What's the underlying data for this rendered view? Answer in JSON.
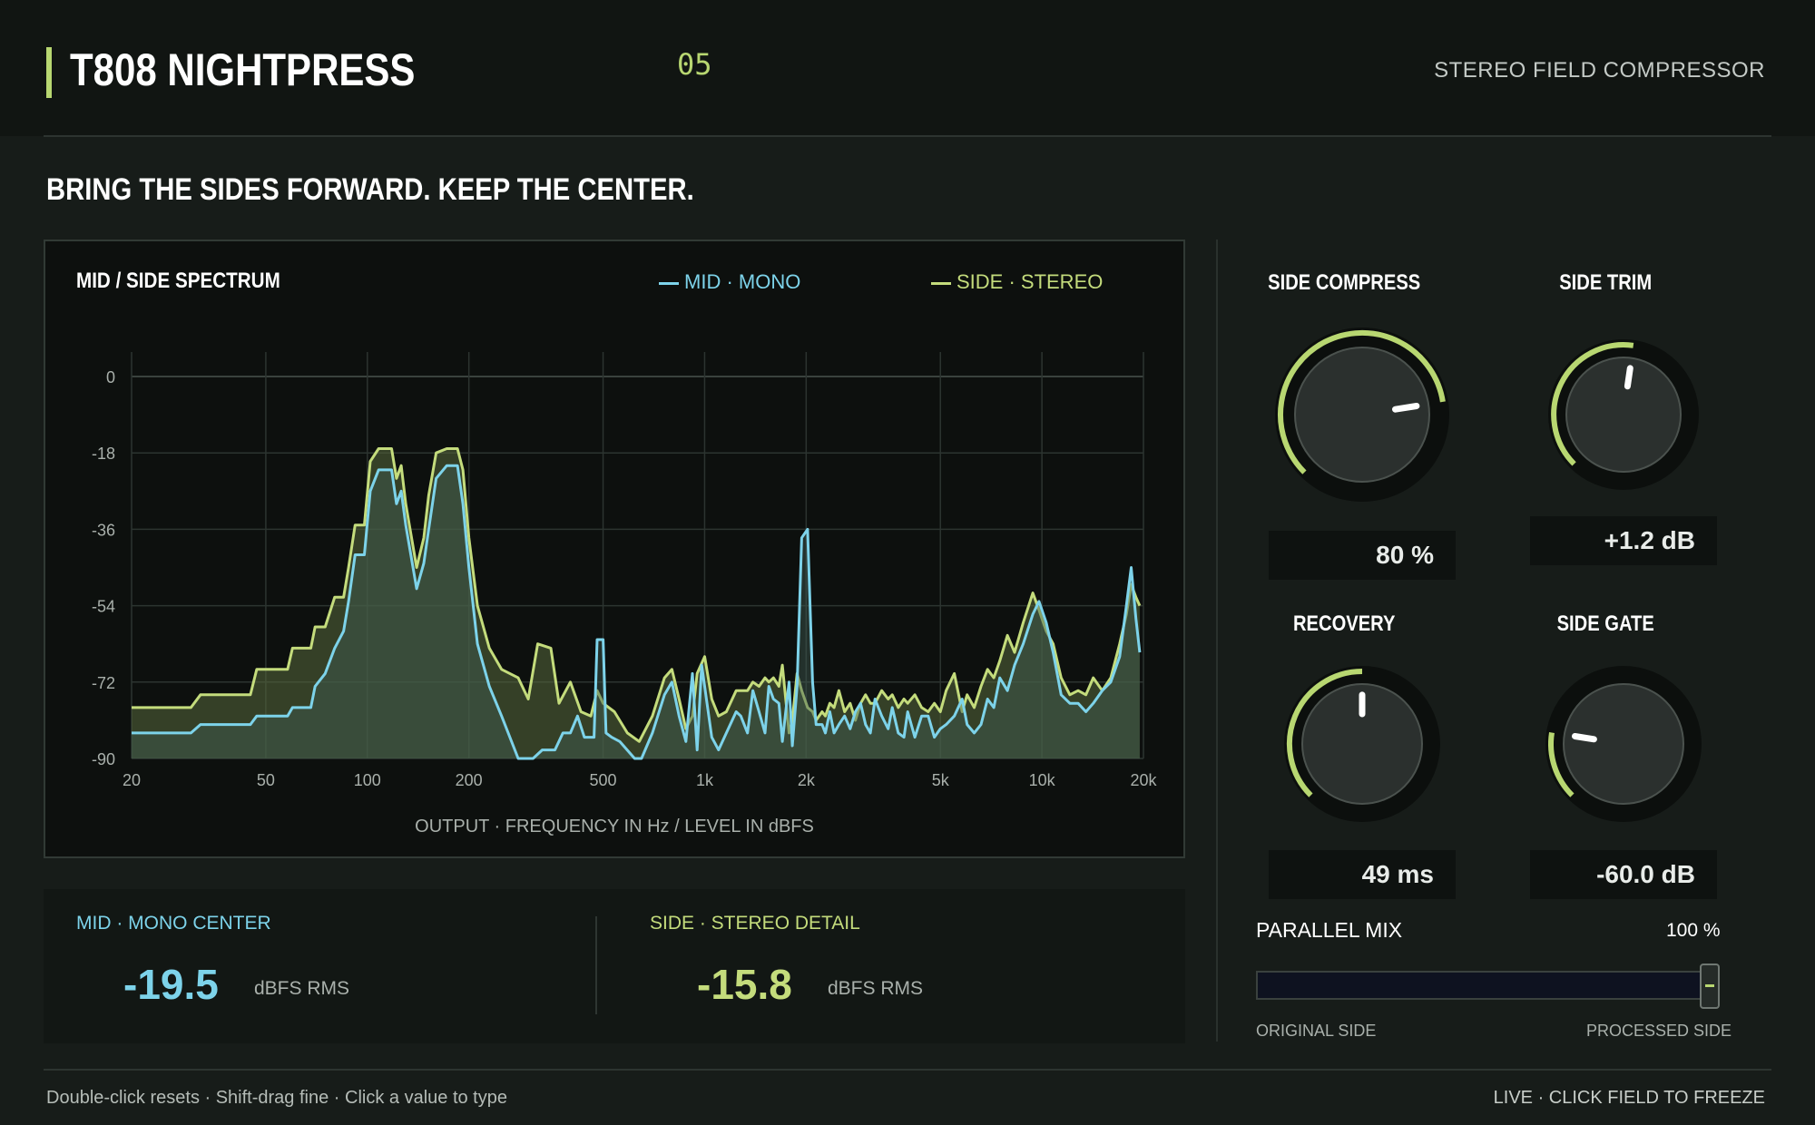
{
  "header": {
    "title": "T808 NIGHTPRESS",
    "preset_number": "05",
    "subtitle": "STEREO FIELD COMPRESSOR"
  },
  "tagline": "BRING THE SIDES FORWARD. KEEP THE CENTER.",
  "spectrum": {
    "title": "MID / SIDE SPECTRUM",
    "legend_mid": "MID · MONO",
    "legend_side": "SIDE · STEREO",
    "caption": "OUTPUT · FREQUENCY IN Hz / LEVEL IN dBFS",
    "colors": {
      "mid": "#7dd3ea",
      "side": "#c4dc7c"
    }
  },
  "chart_data": {
    "type": "area",
    "xscale": "log",
    "xlim": [
      20,
      20000
    ],
    "ylim": [
      -90,
      0
    ],
    "yticks": [
      0,
      -18,
      -36,
      -54,
      -72,
      -90
    ],
    "ytick_labels": [
      "0",
      "-18",
      "-36",
      "-54",
      "-72",
      "-90"
    ],
    "xticks": [
      20,
      50,
      100,
      200,
      500,
      1000,
      2000,
      5000,
      10000,
      20000
    ],
    "xtick_labels": [
      "20",
      "50",
      "100",
      "200",
      "500",
      "1k",
      "2k",
      "5k",
      "10k",
      "20k"
    ],
    "grid": true,
    "series": [
      {
        "name": "MID · MONO",
        "color": "#7dd3ea",
        "points": [
          [
            20,
            -84
          ],
          [
            30,
            -84
          ],
          [
            32,
            -82
          ],
          [
            45,
            -82
          ],
          [
            47,
            -80
          ],
          [
            58,
            -80
          ],
          [
            60,
            -78
          ],
          [
            68,
            -78
          ],
          [
            70,
            -73
          ],
          [
            75,
            -70
          ],
          [
            80,
            -64
          ],
          [
            85,
            -60
          ],
          [
            88,
            -53
          ],
          [
            92,
            -42
          ],
          [
            98,
            -42
          ],
          [
            102,
            -27
          ],
          [
            108,
            -22
          ],
          [
            118,
            -22
          ],
          [
            122,
            -30
          ],
          [
            126,
            -27
          ],
          [
            130,
            -35
          ],
          [
            140,
            -50
          ],
          [
            147,
            -44
          ],
          [
            152,
            -36
          ],
          [
            160,
            -24
          ],
          [
            172,
            -21
          ],
          [
            185,
            -21
          ],
          [
            192,
            -30
          ],
          [
            200,
            -45
          ],
          [
            212,
            -63
          ],
          [
            230,
            -73
          ],
          [
            250,
            -80
          ],
          [
            280,
            -90
          ],
          [
            310,
            -90
          ],
          [
            330,
            -88
          ],
          [
            360,
            -88
          ],
          [
            380,
            -84
          ],
          [
            400,
            -84
          ],
          [
            420,
            -80
          ],
          [
            440,
            -85
          ],
          [
            470,
            -85
          ],
          [
            480,
            -62
          ],
          [
            500,
            -62
          ],
          [
            510,
            -84
          ],
          [
            530,
            -85
          ],
          [
            560,
            -86
          ],
          [
            620,
            -90
          ],
          [
            650,
            -90
          ],
          [
            700,
            -84
          ],
          [
            760,
            -75
          ],
          [
            800,
            -72
          ],
          [
            840,
            -80
          ],
          [
            880,
            -86
          ],
          [
            920,
            -70
          ],
          [
            950,
            -88
          ],
          [
            980,
            -68
          ],
          [
            1050,
            -85
          ],
          [
            1100,
            -88
          ],
          [
            1160,
            -84
          ],
          [
            1240,
            -79
          ],
          [
            1280,
            -80
          ],
          [
            1340,
            -84
          ],
          [
            1390,
            -74
          ],
          [
            1450,
            -79
          ],
          [
            1510,
            -84
          ],
          [
            1550,
            -73
          ],
          [
            1600,
            -76
          ],
          [
            1660,
            -77
          ],
          [
            1700,
            -86
          ],
          [
            1780,
            -72
          ],
          [
            1820,
            -87
          ],
          [
            1880,
            -73
          ],
          [
            1940,
            -38
          ],
          [
            2020,
            -36
          ],
          [
            2090,
            -72
          ],
          [
            2140,
            -82
          ],
          [
            2230,
            -82
          ],
          [
            2280,
            -84
          ],
          [
            2350,
            -79
          ],
          [
            2420,
            -84
          ],
          [
            2500,
            -82
          ],
          [
            2600,
            -80
          ],
          [
            2700,
            -83
          ],
          [
            2800,
            -79
          ],
          [
            2900,
            -77
          ],
          [
            3000,
            -82
          ],
          [
            3100,
            -84
          ],
          [
            3200,
            -76
          ],
          [
            3350,
            -80
          ],
          [
            3500,
            -83
          ],
          [
            3600,
            -78
          ],
          [
            3750,
            -84
          ],
          [
            3900,
            -85
          ],
          [
            4000,
            -79
          ],
          [
            4200,
            -85
          ],
          [
            4400,
            -80
          ],
          [
            4600,
            -80
          ],
          [
            4800,
            -85
          ],
          [
            5000,
            -83
          ],
          [
            5200,
            -82
          ],
          [
            5500,
            -80
          ],
          [
            5800,
            -76
          ],
          [
            6000,
            -82
          ],
          [
            6300,
            -84
          ],
          [
            6600,
            -82
          ],
          [
            6900,
            -76
          ],
          [
            7200,
            -78
          ],
          [
            7500,
            -71
          ],
          [
            7900,
            -74
          ],
          [
            8300,
            -68
          ],
          [
            8800,
            -63
          ],
          [
            9400,
            -56
          ],
          [
            9800,
            -53
          ],
          [
            10300,
            -58
          ],
          [
            10800,
            -65
          ],
          [
            11400,
            -75
          ],
          [
            12100,
            -77
          ],
          [
            12800,
            -77
          ],
          [
            13500,
            -79
          ],
          [
            14200,
            -77
          ],
          [
            15100,
            -74
          ],
          [
            16000,
            -72
          ],
          [
            17000,
            -66
          ],
          [
            17800,
            -54
          ],
          [
            18400,
            -45
          ],
          [
            19000,
            -57
          ],
          [
            19500,
            -65
          ]
        ]
      },
      {
        "name": "SIDE · STEREO",
        "color": "#c4dc7c",
        "points": [
          [
            20,
            -78
          ],
          [
            30,
            -78
          ],
          [
            32,
            -75
          ],
          [
            45,
            -75
          ],
          [
            47,
            -69
          ],
          [
            58,
            -69
          ],
          [
            60,
            -64
          ],
          [
            68,
            -64
          ],
          [
            70,
            -59
          ],
          [
            75,
            -59
          ],
          [
            80,
            -52
          ],
          [
            85,
            -52
          ],
          [
            88,
            -45
          ],
          [
            92,
            -35
          ],
          [
            98,
            -35
          ],
          [
            102,
            -20
          ],
          [
            108,
            -17
          ],
          [
            118,
            -17
          ],
          [
            122,
            -24
          ],
          [
            126,
            -21
          ],
          [
            130,
            -30
          ],
          [
            140,
            -45
          ],
          [
            147,
            -38
          ],
          [
            152,
            -28
          ],
          [
            160,
            -18
          ],
          [
            172,
            -17
          ],
          [
            185,
            -17
          ],
          [
            192,
            -22
          ],
          [
            200,
            -38
          ],
          [
            212,
            -54
          ],
          [
            230,
            -64
          ],
          [
            250,
            -69
          ],
          [
            280,
            -71
          ],
          [
            300,
            -76
          ],
          [
            320,
            -63
          ],
          [
            350,
            -64
          ],
          [
            370,
            -77
          ],
          [
            400,
            -72
          ],
          [
            430,
            -79
          ],
          [
            460,
            -80
          ],
          [
            480,
            -74
          ],
          [
            500,
            -77
          ],
          [
            540,
            -79
          ],
          [
            590,
            -84
          ],
          [
            640,
            -86
          ],
          [
            700,
            -80
          ],
          [
            760,
            -71
          ],
          [
            800,
            -69
          ],
          [
            840,
            -76
          ],
          [
            880,
            -83
          ],
          [
            920,
            -80
          ],
          [
            950,
            -70
          ],
          [
            1000,
            -66
          ],
          [
            1050,
            -76
          ],
          [
            1100,
            -80
          ],
          [
            1160,
            -79
          ],
          [
            1240,
            -74
          ],
          [
            1340,
            -74
          ],
          [
            1390,
            -72
          ],
          [
            1450,
            -73
          ],
          [
            1510,
            -71
          ],
          [
            1550,
            -72
          ],
          [
            1600,
            -71
          ],
          [
            1660,
            -73
          ],
          [
            1700,
            -68
          ],
          [
            1780,
            -84
          ],
          [
            1820,
            -81
          ],
          [
            1880,
            -70
          ],
          [
            1940,
            -74
          ],
          [
            2020,
            -78
          ],
          [
            2090,
            -79
          ],
          [
            2140,
            -81
          ],
          [
            2230,
            -79
          ],
          [
            2280,
            -80
          ],
          [
            2350,
            -77
          ],
          [
            2420,
            -78
          ],
          [
            2500,
            -74
          ],
          [
            2600,
            -79
          ],
          [
            2700,
            -77
          ],
          [
            2800,
            -81
          ],
          [
            2900,
            -77
          ],
          [
            3000,
            -75
          ],
          [
            3100,
            -77
          ],
          [
            3200,
            -77
          ],
          [
            3350,
            -74
          ],
          [
            3500,
            -76
          ],
          [
            3600,
            -75
          ],
          [
            3750,
            -78
          ],
          [
            3900,
            -76
          ],
          [
            4000,
            -77
          ],
          [
            4200,
            -75
          ],
          [
            4400,
            -78
          ],
          [
            4600,
            -79
          ],
          [
            4800,
            -77
          ],
          [
            5000,
            -79
          ],
          [
            5200,
            -74
          ],
          [
            5500,
            -70
          ],
          [
            5800,
            -79
          ],
          [
            6000,
            -75
          ],
          [
            6300,
            -78
          ],
          [
            6600,
            -73
          ],
          [
            6900,
            -69
          ],
          [
            7200,
            -71
          ],
          [
            7500,
            -67
          ],
          [
            7900,
            -61
          ],
          [
            8300,
            -65
          ],
          [
            8800,
            -58
          ],
          [
            9400,
            -51
          ],
          [
            9800,
            -55
          ],
          [
            10300,
            -60
          ],
          [
            10800,
            -63
          ],
          [
            11400,
            -71
          ],
          [
            12100,
            -75
          ],
          [
            12800,
            -74
          ],
          [
            13500,
            -75
          ],
          [
            14200,
            -71
          ],
          [
            15100,
            -74
          ],
          [
            16000,
            -71
          ],
          [
            17000,
            -63
          ],
          [
            17800,
            -56
          ],
          [
            18400,
            -49
          ],
          [
            19000,
            -52
          ],
          [
            19500,
            -54
          ]
        ]
      }
    ]
  },
  "readouts": {
    "mid": {
      "label": "MID · MONO CENTER",
      "value": "-19.5",
      "unit": "dBFS RMS"
    },
    "side": {
      "label": "SIDE · STEREO DETAIL",
      "value": "-15.8",
      "unit": "dBFS RMS"
    }
  },
  "knobs": [
    {
      "id": "side-compress",
      "label": "SIDE COMPRESS",
      "value": "80 %",
      "level": 0.8,
      "color": "#b8d771"
    },
    {
      "id": "side-trim",
      "label": "SIDE TRIM",
      "value": "+1.2 dB",
      "level": 0.53,
      "color": "#b8d771"
    },
    {
      "id": "recovery",
      "label": "RECOVERY",
      "value": "49 ms",
      "level": 0.5,
      "color": "#b8d771"
    },
    {
      "id": "side-gate",
      "label": "SIDE GATE",
      "value": "-60.0 dB",
      "level": 0.2,
      "color": "#b8d771"
    }
  ],
  "parallel_mix": {
    "label": "PARALLEL MIX",
    "value": "100 %",
    "level": 1.0,
    "left_label": "ORIGINAL SIDE",
    "right_label": "PROCESSED SIDE"
  },
  "footer": {
    "hint": "Double-click resets · Shift-drag fine · Click a value to type",
    "status": "LIVE · CLICK FIELD TO FREEZE"
  }
}
